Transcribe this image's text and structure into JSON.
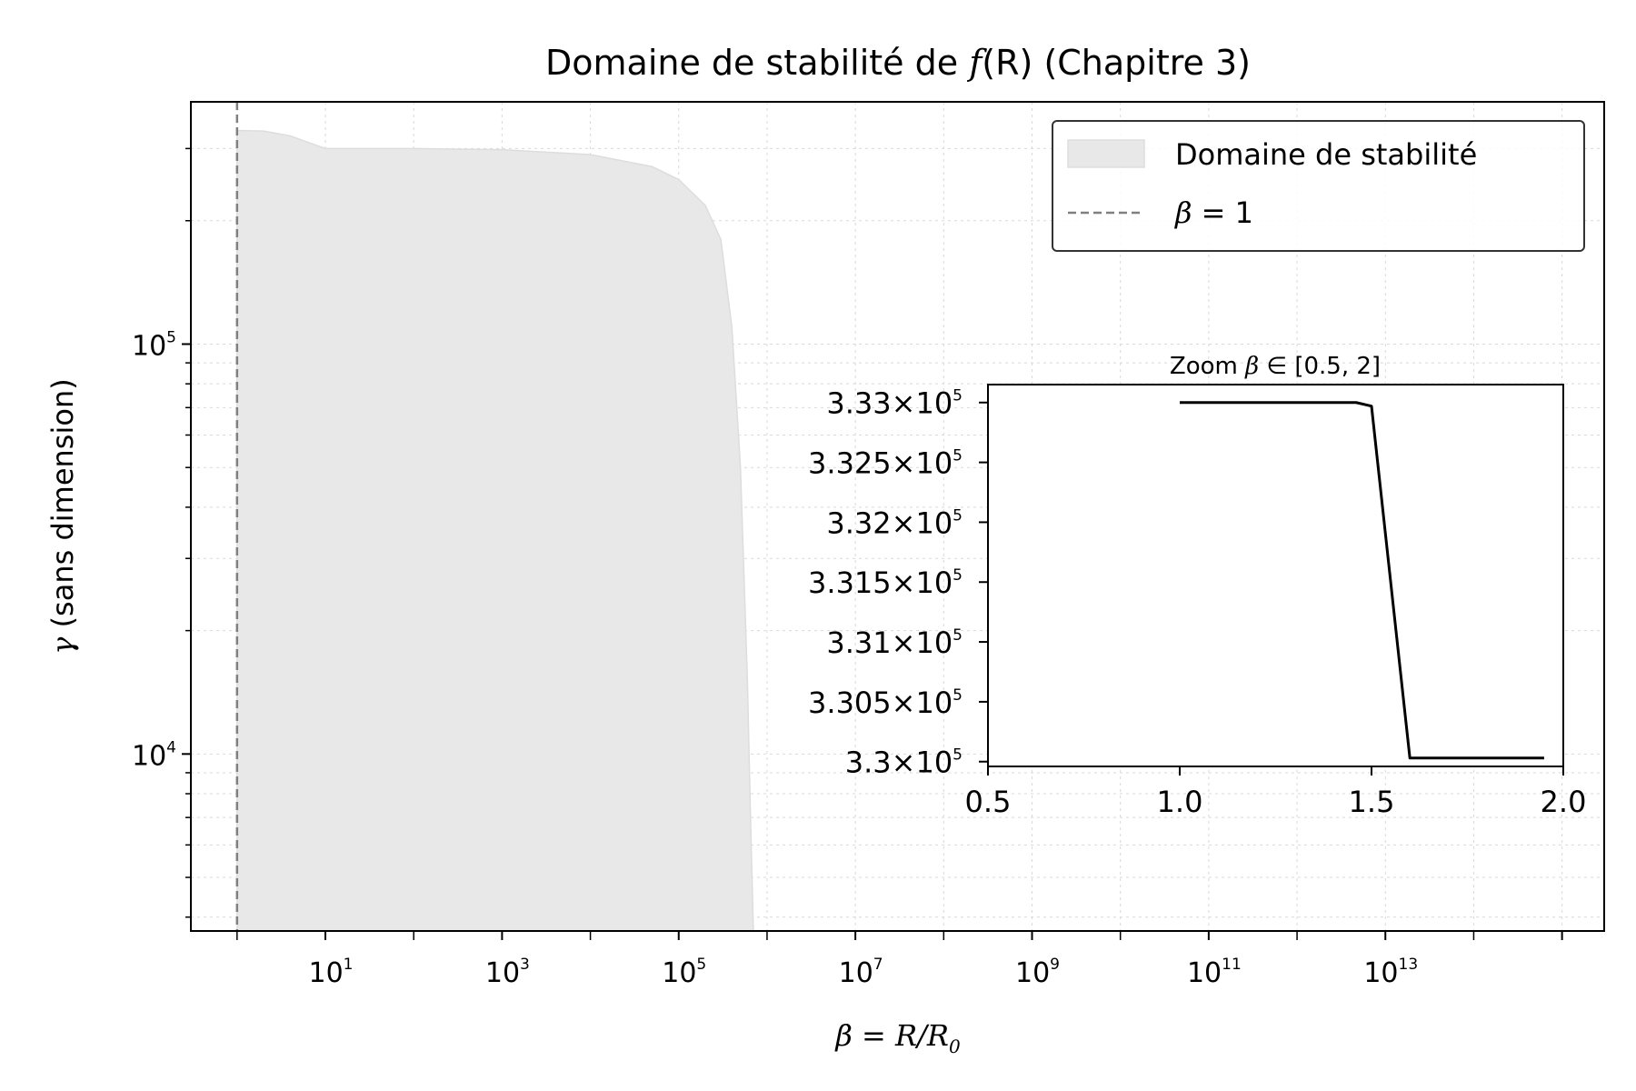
{
  "chart_data": [
    {
      "type": "area",
      "title": "Domaine de stabilité de f(R) (Chapitre 3)",
      "title_parts": {
        "pre": "Domaine de stabilité de ",
        "fn": "f",
        "arg": "(R)",
        "post": " (Chapitre 3)"
      },
      "xlabel": "β = R/R0",
      "xlabel_parts": {
        "lhs": "β = R/R",
        "sub": "0"
      },
      "ylabel": "γ (sans dimension)",
      "ylabel_parts": {
        "sym": "γ",
        "rest": " (sans dimension)"
      },
      "x_scale": "log",
      "y_scale": "log",
      "xlim": [
        0.3,
        3000000000000000.0
      ],
      "ylim": [
        3700,
        390000
      ],
      "x_ticks": [
        {
          "base": "10",
          "exp": "1",
          "value": 10
        },
        {
          "base": "10",
          "exp": "3",
          "value": 1000
        },
        {
          "base": "10",
          "exp": "5",
          "value": 100000
        },
        {
          "base": "10",
          "exp": "7",
          "value": 10000000
        },
        {
          "base": "10",
          "exp": "9",
          "value": 1000000000
        },
        {
          "base": "10",
          "exp": "11",
          "value": 100000000000
        },
        {
          "base": "10",
          "exp": "13",
          "value": 10000000000000
        }
      ],
      "y_ticks": [
        {
          "base": "10",
          "exp": "4",
          "value": 10000
        },
        {
          "base": "10",
          "exp": "5",
          "value": 100000
        }
      ],
      "grid": true,
      "legend": {
        "position": "top-right",
        "entries": [
          {
            "label": "Domaine de stabilité",
            "kind": "fill",
            "color": "#e8e8e8"
          },
          {
            "label": "β = 1",
            "label_parts": {
              "sym": "β",
              "rest": " = 1"
            },
            "kind": "dashed-line",
            "color": "#808080"
          }
        ]
      },
      "series": [
        {
          "name": "Domaine de stabilité",
          "kind": "fill_between",
          "color": "#e8e8e8",
          "x": [
            1,
            2,
            4,
            6,
            10,
            100,
            1000,
            10000,
            50000,
            100000,
            200000,
            300000,
            400000,
            500000,
            600000,
            650000,
            700000
          ],
          "y": [
            332000,
            331000,
            322000,
            312000,
            300000,
            300000,
            298000,
            290000,
            271000,
            252000,
            218000,
            180000,
            110000,
            50000,
            15000,
            7000,
            3700
          ]
        },
        {
          "name": "β = 1",
          "kind": "vline",
          "x": 1,
          "color": "#808080"
        }
      ]
    },
    {
      "type": "line",
      "title": "Zoom β ∈ [0.5, 2]",
      "title_parts": {
        "pre": "Zoom ",
        "sym": "β",
        "post": " ∈ [0.5, 2]"
      },
      "xlim": [
        0.5,
        2.0
      ],
      "ylim": [
        329960,
        333150
      ],
      "x_ticks": [
        "0.5",
        "1.0",
        "1.5",
        "2.0"
      ],
      "y_ticks": [
        {
          "mant": "3.3",
          "value": 330000
        },
        {
          "mant": "3.305",
          "value": 330500
        },
        {
          "mant": "3.31",
          "value": 331000
        },
        {
          "mant": "3.315",
          "value": 331500
        },
        {
          "mant": "3.32",
          "value": 332000
        },
        {
          "mant": "3.325",
          "value": 332500
        },
        {
          "mant": "3.33",
          "value": 333000
        }
      ],
      "y_tick_times": "×",
      "y_tick_base": "10",
      "y_tick_exp": "5",
      "series": [
        {
          "color": "#000000",
          "x": [
            1.0,
            1.2,
            1.4,
            1.46,
            1.5,
            1.55,
            1.6,
            1.95
          ],
          "y": [
            333000,
            333000,
            333000,
            333000,
            332970,
            331500,
            330030,
            330030
          ]
        }
      ]
    }
  ]
}
